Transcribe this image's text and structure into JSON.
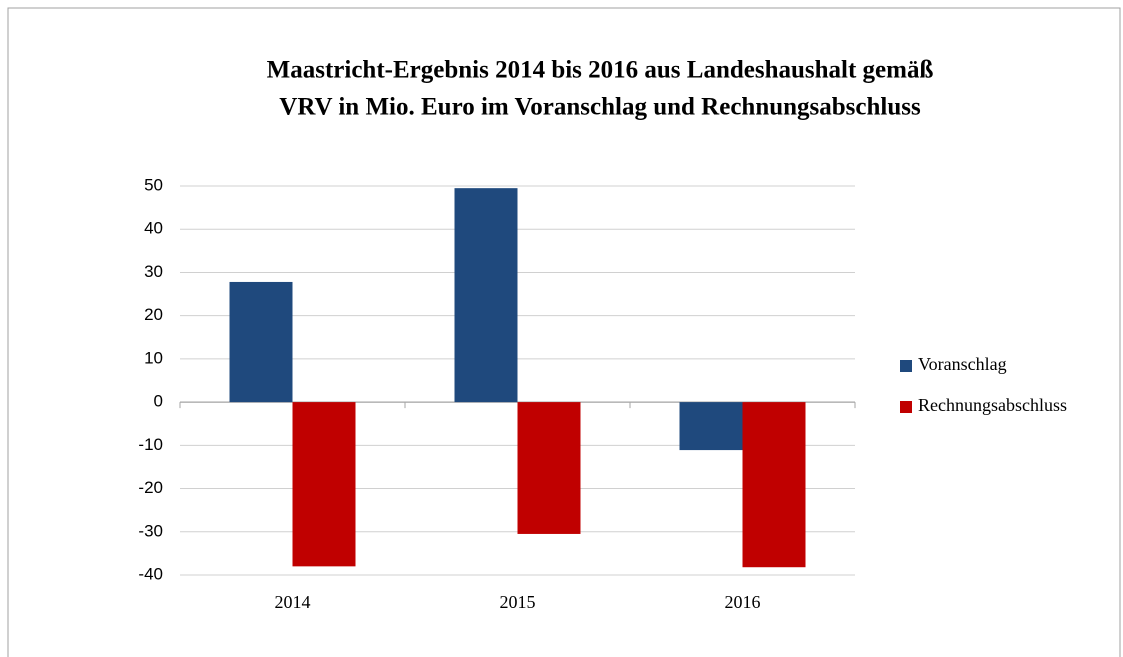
{
  "chart_data": {
    "type": "bar",
    "title": [
      "Maastricht-Ergebnis 2014 bis 2016 aus Landeshaushalt gemäß",
      "VRV in Mio. Euro im Voranschlag und Rechnungsabschluss"
    ],
    "categories": [
      "2014",
      "2015",
      "2016"
    ],
    "series": [
      {
        "name": "Voranschlag",
        "color": "#1f497d",
        "values": [
          27.8,
          49.5,
          -11.1
        ]
      },
      {
        "name": "Rechnungsabschluss",
        "color": "#c00000",
        "values": [
          -38,
          -30.5,
          -38.2
        ]
      }
    ],
    "ylim": [
      -40,
      50
    ],
    "yticks": [
      -40,
      -30,
      -20,
      -10,
      0,
      10,
      20,
      30,
      40,
      50
    ],
    "grid": true,
    "legend": "right"
  }
}
